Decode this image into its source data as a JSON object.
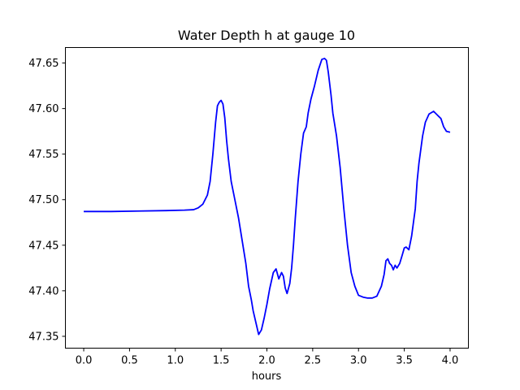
{
  "chart_data": {
    "type": "line",
    "title": "Water Depth h at gauge 10",
    "xlabel": "hours",
    "ylabel": "",
    "xlim": [
      -0.2,
      4.2
    ],
    "ylim": [
      47.337,
      47.667
    ],
    "xticks": [
      0.0,
      0.5,
      1.0,
      1.5,
      2.0,
      2.5,
      3.0,
      3.5,
      4.0
    ],
    "xtick_labels": [
      "0.0",
      "0.5",
      "1.0",
      "1.5",
      "2.0",
      "2.5",
      "3.0",
      "3.5",
      "4.0"
    ],
    "yticks": [
      47.35,
      47.4,
      47.45,
      47.5,
      47.55,
      47.6,
      47.65
    ],
    "ytick_labels": [
      "47.35",
      "47.40",
      "47.45",
      "47.50",
      "47.55",
      "47.60",
      "47.65"
    ],
    "grid": false,
    "series": [
      {
        "color": "#0000ff",
        "x": [
          0.0,
          0.3,
          0.6,
          0.9,
          1.1,
          1.2,
          1.25,
          1.3,
          1.35,
          1.38,
          1.41,
          1.44,
          1.46,
          1.48,
          1.5,
          1.52,
          1.54,
          1.56,
          1.58,
          1.61,
          1.65,
          1.69,
          1.73,
          1.77,
          1.8,
          1.83,
          1.85,
          1.88,
          1.91,
          1.94,
          1.97,
          2.0,
          2.03,
          2.07,
          2.1,
          2.13,
          2.16,
          2.18,
          2.2,
          2.22,
          2.25,
          2.27,
          2.29,
          2.31,
          2.34,
          2.37,
          2.4,
          2.43,
          2.45,
          2.48,
          2.52,
          2.56,
          2.6,
          2.63,
          2.65,
          2.67,
          2.7,
          2.72,
          2.76,
          2.8,
          2.84,
          2.88,
          2.92,
          2.96,
          3.0,
          3.05,
          3.1,
          3.15,
          3.2,
          3.25,
          3.28,
          3.3,
          3.32,
          3.34,
          3.36,
          3.38,
          3.4,
          3.42,
          3.45,
          3.48,
          3.5,
          3.52,
          3.55,
          3.58,
          3.6,
          3.62,
          3.64,
          3.66,
          3.68,
          3.7,
          3.73,
          3.77,
          3.82,
          3.86,
          3.9,
          3.93,
          3.96,
          4.0
        ],
        "y": [
          47.487,
          47.487,
          47.4875,
          47.488,
          47.4885,
          47.489,
          47.491,
          47.495,
          47.505,
          47.52,
          47.55,
          47.585,
          47.603,
          47.607,
          47.609,
          47.605,
          47.59,
          47.565,
          47.545,
          47.52,
          47.5,
          47.48,
          47.455,
          47.43,
          47.405,
          47.39,
          47.378,
          47.365,
          47.352,
          47.357,
          47.37,
          47.385,
          47.402,
          47.42,
          47.424,
          47.413,
          47.42,
          47.416,
          47.403,
          47.397,
          47.408,
          47.425,
          47.45,
          47.48,
          47.52,
          47.55,
          47.573,
          47.58,
          47.595,
          47.61,
          47.625,
          47.642,
          47.654,
          47.655,
          47.653,
          47.64,
          47.615,
          47.595,
          47.57,
          47.535,
          47.49,
          47.45,
          47.42,
          47.405,
          47.395,
          47.393,
          47.392,
          47.392,
          47.394,
          47.405,
          47.418,
          47.433,
          47.435,
          47.43,
          47.428,
          47.423,
          47.428,
          47.425,
          47.43,
          47.44,
          47.447,
          47.448,
          47.445,
          47.46,
          47.475,
          47.49,
          47.52,
          47.54,
          47.555,
          47.57,
          47.585,
          47.594,
          47.597,
          47.593,
          47.589,
          47.58,
          47.575,
          47.574
        ]
      }
    ]
  }
}
